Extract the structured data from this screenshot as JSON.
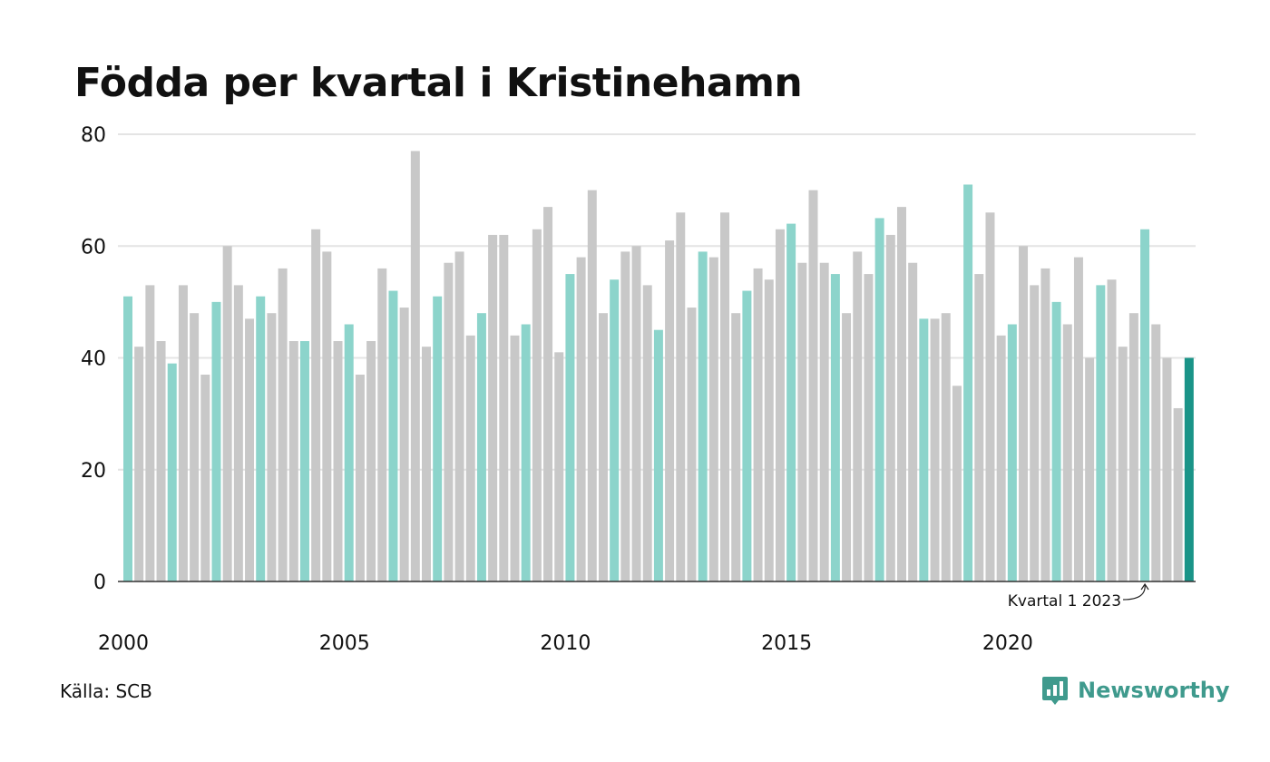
{
  "colors": {
    "highlight": "#8cd4cb",
    "regular": "#c8c8c8",
    "latest": "#1a9488",
    "grid": "#e4e4e4",
    "axis": "#333333",
    "brand": "#3f9a8d"
  },
  "chart_data": {
    "type": "bar",
    "title": "Födda per kvartal i Kristinehamn",
    "xlabel": "",
    "ylabel": "",
    "ylim": [
      0,
      80
    ],
    "yticks": [
      "0",
      "20",
      "40",
      "60",
      "80"
    ],
    "xticks": [
      "2000",
      "2005",
      "2010",
      "2015",
      "2020"
    ],
    "start_year": 2000,
    "quarters_per_year": 4,
    "values": [
      51,
      42,
      53,
      43,
      39,
      53,
      48,
      37,
      50,
      60,
      53,
      47,
      51,
      48,
      56,
      43,
      43,
      63,
      59,
      43,
      46,
      37,
      43,
      56,
      52,
      49,
      77,
      42,
      51,
      57,
      59,
      44,
      48,
      62,
      62,
      44,
      46,
      63,
      67,
      41,
      55,
      58,
      70,
      48,
      54,
      59,
      60,
      53,
      45,
      61,
      66,
      49,
      59,
      58,
      66,
      48,
      52,
      56,
      54,
      63,
      64,
      57,
      70,
      57,
      55,
      48,
      59,
      55,
      65,
      62,
      67,
      57,
      47,
      47,
      48,
      35,
      71,
      55,
      66,
      44,
      46,
      60,
      53,
      56,
      50,
      46,
      58,
      40,
      53,
      54,
      42,
      48,
      63,
      46,
      40,
      31,
      40
    ],
    "highlight_rule": "first quarter of each year",
    "annotation": "Kvartal 1 2023",
    "grid": true
  },
  "source": "Källa: SCB",
  "brand": {
    "name": "Newsworthy",
    "icon": "newsworthy-logo-icon"
  }
}
